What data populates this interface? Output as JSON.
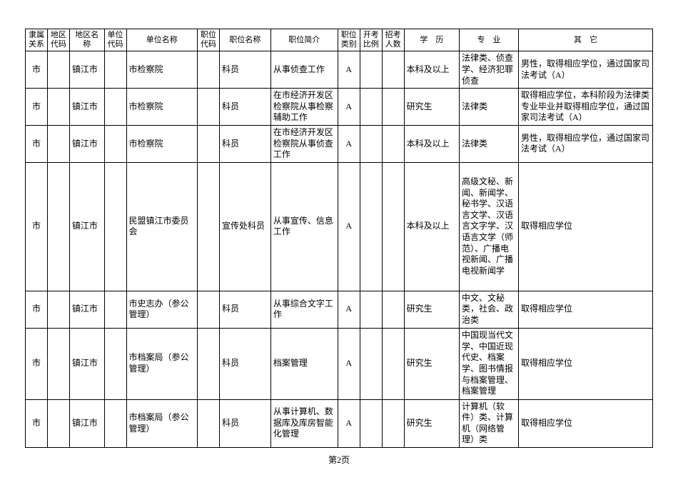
{
  "headers": [
    "隶属关系",
    "地区代码",
    "地区名称",
    "单位代码",
    "单位名称",
    "职位代码",
    "职位名称",
    "职位简介",
    "职位类别",
    "开考比例",
    "招考人数",
    "学　历",
    "专　业",
    "其　它"
  ],
  "rows": [
    {
      "c0": "市",
      "c1": "",
      "c2": "镇江市",
      "c3": "",
      "c4": "市检察院",
      "c5": "",
      "c6": "科员",
      "c7": "从事侦查工作",
      "c8": "A",
      "c9": "",
      "c10": "",
      "c11": "本科及以上",
      "c12": "法律类、侦查学、经济犯罪侦查",
      "c13": "男性，取得相应学位，通过国家司法考试（A）"
    },
    {
      "c0": "市",
      "c1": "",
      "c2": "镇江市",
      "c3": "",
      "c4": "市检察院",
      "c5": "",
      "c6": "科员",
      "c7": "在市经济开发区检察院从事检察辅助工作",
      "c8": "A",
      "c9": "",
      "c10": "",
      "c11": "研究生",
      "c12": "法律类",
      "c13": "取得相应学位，本科阶段为法律类专业毕业并取得相应学位，通过国家司法考试（A）"
    },
    {
      "c0": "市",
      "c1": "",
      "c2": "镇江市",
      "c3": "",
      "c4": "市检察院",
      "c5": "",
      "c6": "科员",
      "c7": "在市经济开发区检察院从事侦查工作",
      "c8": "A",
      "c9": "",
      "c10": "",
      "c11": "本科及以上",
      "c12": "法律类",
      "c13": "男性，取得相应学位，通过国家司法考试（A）"
    },
    {
      "c0": "市",
      "c1": "",
      "c2": "镇江市",
      "c3": "",
      "c4": "民盟镇江市委员会",
      "c5": "",
      "c6": "宣传处科员",
      "c7": "从事宣传、信息工作",
      "c8": "A",
      "c9": "",
      "c10": "",
      "c11": "本科及以上",
      "c12": "高级文秘、新闻、新闻学、秘书学、汉语言文学、汉语言文字学、汉语言文学（师范）、广播电视新闻、广播电视新闻学",
      "c13": "取得相应学位"
    },
    {
      "c0": "市",
      "c1": "",
      "c2": "镇江市",
      "c3": "",
      "c4": "市史志办（参公管理）",
      "c5": "",
      "c6": "科员",
      "c7": "从事综合文字工作",
      "c8": "A",
      "c9": "",
      "c10": "",
      "c11": "研究生",
      "c12": "中文、文秘类，社会、政治类",
      "c13": "取得相应学位"
    },
    {
      "c0": "市",
      "c1": "",
      "c2": "镇江市",
      "c3": "",
      "c4": "市档案局（参公管理）",
      "c5": "",
      "c6": "科员",
      "c7": "档案管理",
      "c8": "A",
      "c9": "",
      "c10": "",
      "c11": "研究生",
      "c12": "中国现当代文学、中国近现代史、档案学、图书情报与档案管理、档案管理",
      "c13": "取得相应学位"
    },
    {
      "c0": "市",
      "c1": "",
      "c2": "镇江市",
      "c3": "",
      "c4": "市档案局（参公管理）",
      "c5": "",
      "c6": "科员",
      "c7": "从事计算机、数据库及库房智能化管理",
      "c8": "A",
      "c9": "",
      "c10": "",
      "c11": "研究生",
      "c12": "计算机（软件）类、计算机（网络管理）类",
      "c13": "取得相应学位"
    }
  ],
  "footer": "第2页",
  "rowHeights": [
    "row-short",
    "row-short",
    "row-short",
    "row-tall",
    "row-short",
    "row-med",
    "row-short"
  ]
}
